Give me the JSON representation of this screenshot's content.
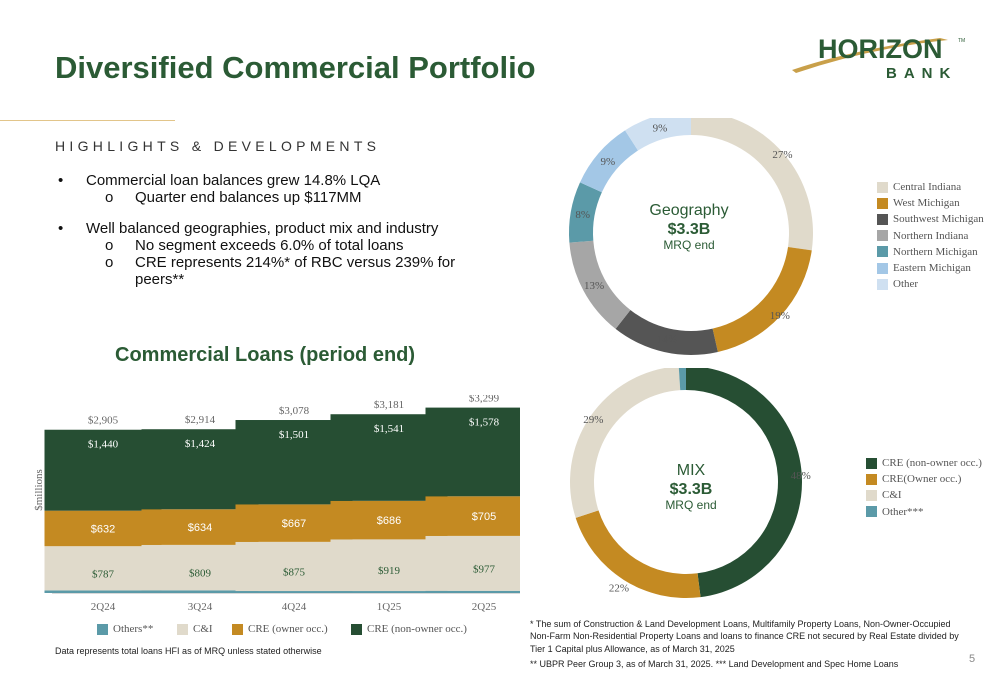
{
  "title": "Diversified Commercial Portfolio",
  "logo": {
    "word": "HORIZON",
    "sub": "BANK",
    "tm": "TM",
    "colors": {
      "green": "#2b5b35",
      "gold": "#c9a04a"
    }
  },
  "highlights": {
    "heading": "HIGHLIGHTS & DEVELOPMENTS",
    "items": [
      {
        "marker": "•",
        "text": "Commercial loan balances grew 14.8% LQA"
      },
      {
        "marker": "o",
        "text": "Quarter end balances up $117MM"
      },
      {
        "marker": "•",
        "text": "Well balanced geographies, product mix and industry"
      },
      {
        "marker": "o",
        "text": "No segment exceeds 6.0% of total loans"
      },
      {
        "marker": "o",
        "text": "CRE represents 214%* of RBC versus 239% for"
      },
      {
        "marker": "",
        "text": "peers**"
      }
    ]
  },
  "bar_chart_title": "Commercial Loans (period end)",
  "geography": {
    "center_title": "Geography",
    "center_value": "$3.3B",
    "center_sub": "MRQ end",
    "legend": [
      "Central Indiana",
      "West Michigan",
      "Southwest Michigan",
      "Northern Indiana",
      "Northern Michigan",
      "Eastern Michigan",
      "Other"
    ]
  },
  "mix": {
    "center_title": "MIX",
    "center_value": "$3.3B",
    "center_sub": "MRQ end",
    "legend": [
      "CRE (non-owner occ.)",
      "CRE(Owner occ.)",
      "C&I",
      "Other***"
    ]
  },
  "colors": {
    "text_green": "#2b5b35",
    "cre_non_owner": "#264e33",
    "cre_owner": "#c48a22",
    "ci": "#e0dacb",
    "others": "#5b9aa8",
    "central_indiana": "#e0dacb",
    "west_michigan": "#c48a22",
    "southwest_michigan": "#555555",
    "northern_indiana": "#a6a6a6",
    "northern_michigan": "#5b9aa8",
    "eastern_michigan": "#a3c7e6",
    "other": "#cfe0f1"
  },
  "chart_data": [
    {
      "type": "bar",
      "stacked": true,
      "categories": [
        "2Q24",
        "3Q24",
        "4Q24",
        "1Q25",
        "2Q25"
      ],
      "ylabel": "$millions",
      "totals": [
        2905,
        2914,
        3078,
        3181,
        3299
      ],
      "total_labels": [
        "$2,905",
        "$2,914",
        "$3,078",
        "$3,181",
        "$3,299"
      ],
      "series": [
        {
          "name": "Others**",
          "values": [
            46,
            47,
            35,
            35,
            39
          ],
          "labels": [
            "$46",
            "$47",
            "$35",
            "$35",
            "$39"
          ]
        },
        {
          "name": "C&I",
          "values": [
            787,
            809,
            875,
            919,
            977
          ],
          "labels": [
            "$787",
            "$809",
            "$875",
            "$919",
            "$977"
          ]
        },
        {
          "name": "CRE (owner occ.)",
          "values": [
            632,
            634,
            667,
            686,
            705
          ],
          "labels": [
            "$632",
            "$634",
            "$667",
            "$686",
            "$705"
          ]
        },
        {
          "name": "CRE (non-owner occ.)",
          "values": [
            1440,
            1424,
            1501,
            1541,
            1578
          ],
          "labels": [
            "$1,440",
            "$1,424",
            "$1,501",
            "$1,541",
            "$1,578"
          ]
        }
      ],
      "legend_position": "bottom"
    },
    {
      "type": "pie",
      "donut": true,
      "categories": [
        "Central Indiana",
        "West Michigan",
        "Southwest Michigan",
        "Northern Indiana",
        "Northern Michigan",
        "Eastern Michigan",
        "Other"
      ],
      "values": [
        27,
        19,
        14,
        13,
        8,
        9,
        9
      ],
      "labels": [
        "27%",
        "19%",
        "14%",
        "13%",
        "8%",
        "9%",
        "9%"
      ],
      "legend_position": "right"
    },
    {
      "type": "pie",
      "donut": true,
      "categories": [
        "CRE (non-owner occ.)",
        "CRE(Owner occ.)",
        "C&I",
        "Other***"
      ],
      "values": [
        48,
        22,
        29,
        1
      ],
      "labels": [
        "48%",
        "22%",
        "29%",
        "1%"
      ],
      "legend_position": "right"
    }
  ],
  "data_note": "Data represents total loans HFI as of MRQ unless stated otherwise",
  "footnote1": "* The sum of Construction & Land Development Loans, Multifamily Property Loans, Non-Owner-Occupied Non-Farm Non-Residential Property Loans and loans to finance CRE not secured by Real Estate divided by Tier 1 Capital plus Allowance, as of March 31, 2025",
  "footnote2": "** UBPR Peer Group 3, as of March 31, 2025. *** Land Development and Spec Home Loans",
  "page_number": "5"
}
